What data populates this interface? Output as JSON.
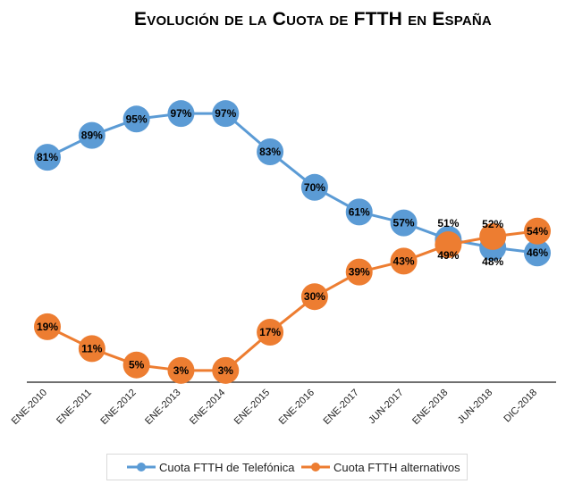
{
  "chart_data": {
    "type": "line",
    "title": "Evolución de la Cuota de FTTH en España",
    "xlabel": "",
    "ylabel": "",
    "categories": [
      "ENE-2010",
      "ENE-2011",
      "ENE-2012",
      "ENE-2013",
      "ENE-2014",
      "ENE-2015",
      "ENE-2016",
      "ENE-2017",
      "JUN-2017",
      "ENE-2018",
      "JUN-2018",
      "DIC-2018"
    ],
    "series": [
      {
        "name": "Cuota FTTH de Telefónica",
        "values": [
          81,
          89,
          95,
          97,
          97,
          83,
          70,
          61,
          57,
          51,
          48,
          46
        ],
        "color": "#5b9bd5"
      },
      {
        "name": "Cuota FTTH alternativos",
        "values": [
          19,
          11,
          5,
          3,
          3,
          17,
          30,
          39,
          43,
          49,
          52,
          54
        ],
        "color": "#ed7d31"
      }
    ],
    "grid": false,
    "legend": "bottom"
  }
}
